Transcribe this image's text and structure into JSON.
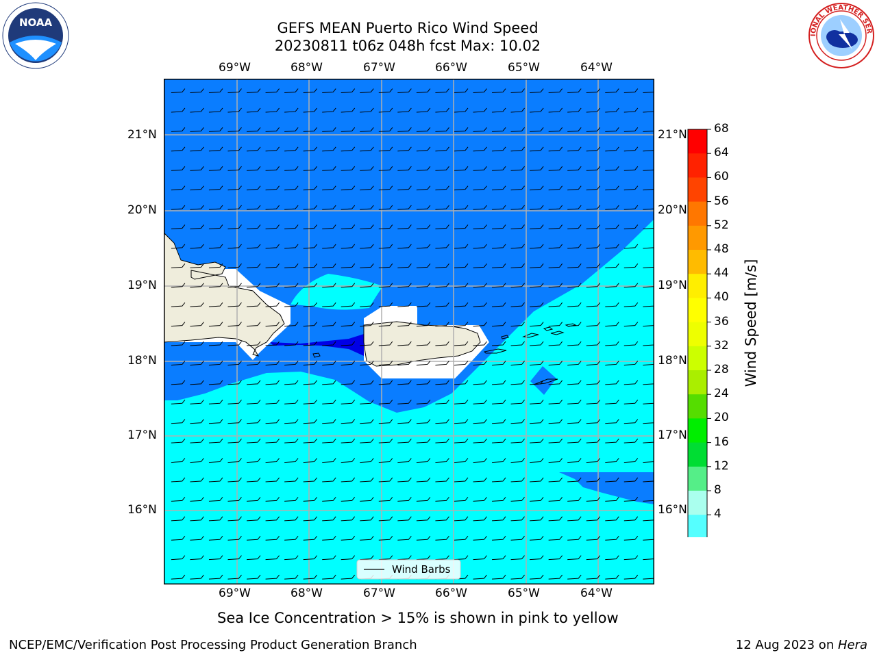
{
  "title": {
    "line1": "GEFS MEAN Puerto Rico Wind Speed",
    "line2": "20230811 t06z 048h fcst   Max: 10.02"
  },
  "map": {
    "lon_labels": [
      "69°W",
      "68°W",
      "67°W",
      "66°W",
      "65°W",
      "64°W"
    ],
    "lat_labels": [
      "21°N",
      "20°N",
      "19°N",
      "18°N",
      "17°N",
      "16°N"
    ],
    "lon_range": [
      -70.0,
      -63.25
    ],
    "lat_range": [
      15.0,
      21.75
    ],
    "legend_label": "Wind Barbs",
    "fill_colors": {
      "band_4_8": "#0a7dff",
      "band_8_12": "#00ffff",
      "below_4": "#0000e6",
      "land": "#efeddc",
      "masked": "#ffffff"
    }
  },
  "colorbar": {
    "label": "Wind Speed [m/s]",
    "ticks": [
      "68",
      "64",
      "60",
      "56",
      "52",
      "48",
      "44",
      "40",
      "36",
      "32",
      "28",
      "24",
      "20",
      "16",
      "12",
      "8",
      "4"
    ],
    "colors": [
      "#ff0000",
      "#ff2200",
      "#ff4400",
      "#ff7700",
      "#ff9900",
      "#ffbb00",
      "#ffee00",
      "#ffff00",
      "#eeff00",
      "#ccff00",
      "#aaee00",
      "#55dd00",
      "#00ee00",
      "#00dd33",
      "#55ee88",
      "#aaffee",
      "#55ffff",
      "#00ffff",
      "#0a7dff"
    ],
    "extend_color": "#0000e6"
  },
  "caption": "Sea Ice Concentration > 15% is shown in pink to yellow",
  "footer": {
    "left": "NCEP/EMC/Verification Post Processing Product Generation Branch",
    "date": "12 Aug 2023 on ",
    "machine": "Hera"
  },
  "logos": {
    "noaa_text": "NOAA",
    "nws_text": "NATIONAL WEATHER SERVICE"
  }
}
